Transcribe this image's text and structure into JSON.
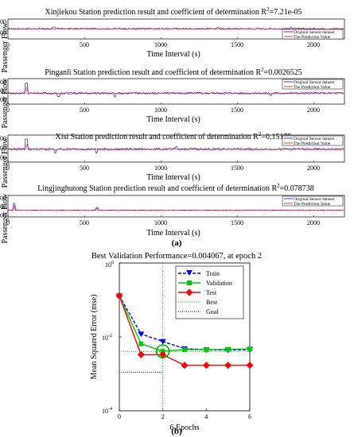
{
  "chart_data": [
    {
      "type": "line",
      "title": "Xinjiekou Station prediction result and coefficient of determination R",
      "r2_superscript": "2",
      "r2_value": "=7.21e-05",
      "xlabel": "Time Interval (s)",
      "ylabel": "Passenger Flow",
      "xlim": [
        0,
        2200
      ],
      "ylim": [
        300,
        600
      ],
      "xticks": [
        "0",
        "500",
        "1000",
        "1500",
        "2000"
      ],
      "yticks": [
        "600",
        "400"
      ],
      "legend": [
        "Original Sensor dataset",
        "The Prediction Value"
      ],
      "legend_position": "top-right",
      "series": [
        {
          "name": "Original Sensor dataset",
          "color": "#0000ff",
          "base": 455,
          "noise": 10,
          "spikes": [
            [
              300,
              480
            ],
            [
              1370,
              475
            ],
            [
              1850,
              480
            ]
          ]
        },
        {
          "name": "The Prediction Value",
          "color": "#ff0000",
          "base": 450,
          "noise": 8,
          "spikes": []
        }
      ]
    },
    {
      "type": "line",
      "title": "Pinganli Station prediction result and coefficient of determination R",
      "r2_superscript": "2",
      "r2_value": "=0.0026525",
      "xlabel": "Time Interval (s)",
      "ylabel": "Passenger Flow",
      "xlim": [
        0,
        2200
      ],
      "ylim": [
        200,
        500
      ],
      "xticks": [
        "0",
        "500",
        "1000",
        "1500",
        "2000"
      ],
      "yticks": [
        "400",
        "300",
        "200"
      ],
      "legend": [
        "Original Sensor dataset",
        "The Prediction Value"
      ],
      "legend_position": "top-right",
      "series": [
        {
          "name": "Original Sensor dataset",
          "color": "#0000ff",
          "base": 330,
          "noise": 10,
          "spikes": [
            [
              120,
              450
            ],
            [
              330,
              290
            ],
            [
              700,
              285
            ],
            [
              1720,
              300
            ]
          ]
        },
        {
          "name": "The Prediction Value",
          "color": "#ff0000",
          "base": 325,
          "noise": 8,
          "spikes": [
            [
              125,
              390
            ]
          ]
        }
      ]
    },
    {
      "type": "line",
      "title": "Xisi Station prediction result and coefficient of determination R",
      "r2_superscript": "2",
      "r2_value": "=0.15175",
      "xlabel": "Time Interval (s)",
      "ylabel": "Passenger Flow",
      "xlim": [
        0,
        2200
      ],
      "ylim": [
        200,
        500
      ],
      "xticks": [
        "0",
        "500",
        "1000",
        "1500",
        "2000"
      ],
      "yticks": [
        "400",
        "300",
        "200"
      ],
      "legend": [
        "Original Sensor dataset",
        "The Prediction Value"
      ],
      "legend_position": "top-right",
      "series": [
        {
          "name": "Original Sensor dataset",
          "color": "#0000ff",
          "base": 345,
          "noise": 10,
          "spikes": [
            [
              120,
              455
            ],
            [
              310,
              300
            ],
            [
              580,
              300
            ],
            [
              1100,
              375
            ]
          ]
        },
        {
          "name": "The Prediction Value",
          "color": "#ff0000",
          "base": 340,
          "noise": 8,
          "spikes": [
            [
              125,
              395
            ]
          ]
        }
      ]
    },
    {
      "type": "line",
      "title": "Lingjinghutong Station prediction result and coefficient of determination R",
      "r2_superscript": "2",
      "r2_value": "=0.078738",
      "xlabel": "Time Interval (s)",
      "ylabel": "Passenger Flow",
      "xlim": [
        0,
        2200
      ],
      "ylim": [
        200,
        600
      ],
      "xticks": [
        "0",
        "500",
        "1000",
        "1500",
        "2000"
      ],
      "yticks": [
        "600",
        "400",
        "200"
      ],
      "legend": [
        "Original Sensor dataset",
        "The Prediction Value"
      ],
      "legend_position": "top-right",
      "series": [
        {
          "name": "Original Sensor dataset",
          "color": "#0000ff",
          "base": 325,
          "noise": 6,
          "spikes": [
            [
              40,
              455
            ],
            [
              580,
              370
            ]
          ]
        },
        {
          "name": "The Prediction Value",
          "color": "#ff0000",
          "base": 322,
          "noise": 5,
          "spikes": [
            [
              45,
              410
            ],
            [
              585,
              380
            ]
          ]
        }
      ]
    },
    {
      "type": "line",
      "title": "Best Validation Performance=0.004067, at epoch 2",
      "xlabel": "6 Epochs",
      "ylabel": "Mean Squared Error  (mse)",
      "yscale": "log",
      "xlim": [
        0,
        6
      ],
      "ylim_exp": [
        -4,
        0
      ],
      "xticks": [
        "0",
        "2",
        "4",
        "6"
      ],
      "yticks": [
        {
          "base": "10",
          "exp": "0",
          "value": 0
        },
        {
          "base": "10",
          "exp": "-2",
          "value": -2
        },
        {
          "base": "10",
          "exp": "-4",
          "value": -4
        }
      ],
      "legend_position": "top-right",
      "series": [
        {
          "name": "Train",
          "color": "#0000ff",
          "style": "dashed",
          "marker": "triangle-down",
          "x": [
            0,
            1,
            2,
            3,
            4,
            5,
            6
          ],
          "y": [
            0.13,
            0.012,
            0.0075,
            0.0048,
            0.0045,
            0.0044,
            0.0045
          ]
        },
        {
          "name": "Validation",
          "color": "#00cc00",
          "style": "solid",
          "marker": "square",
          "x": [
            0,
            1,
            2,
            3,
            4,
            5,
            6
          ],
          "y": [
            0.13,
            0.0065,
            0.004067,
            0.0045,
            0.0045,
            0.0046,
            0.0047
          ]
        },
        {
          "name": "Test",
          "color": "#ff0000",
          "style": "solid",
          "marker": "diamond",
          "x": [
            0,
            1,
            2,
            3,
            4,
            5,
            6
          ],
          "y": [
            0.13,
            0.0033,
            0.0033,
            0.0017,
            0.0017,
            0.0017,
            0.0017
          ]
        },
        {
          "name": "Best",
          "color": "#00aa00",
          "style": "dotted",
          "x": [
            2,
            2
          ],
          "y": [
            0.0001,
            1
          ]
        },
        {
          "name": "Goal",
          "color": "#000000",
          "style": "dotted",
          "x": [
            0,
            6
          ],
          "y": [
            0.004067,
            0.004067
          ]
        }
      ],
      "goal_level_2": 0.0011,
      "best_point": {
        "epoch": 2,
        "value": 0.004067
      }
    }
  ],
  "captions": {
    "a": "(a)",
    "b": "(b)"
  }
}
